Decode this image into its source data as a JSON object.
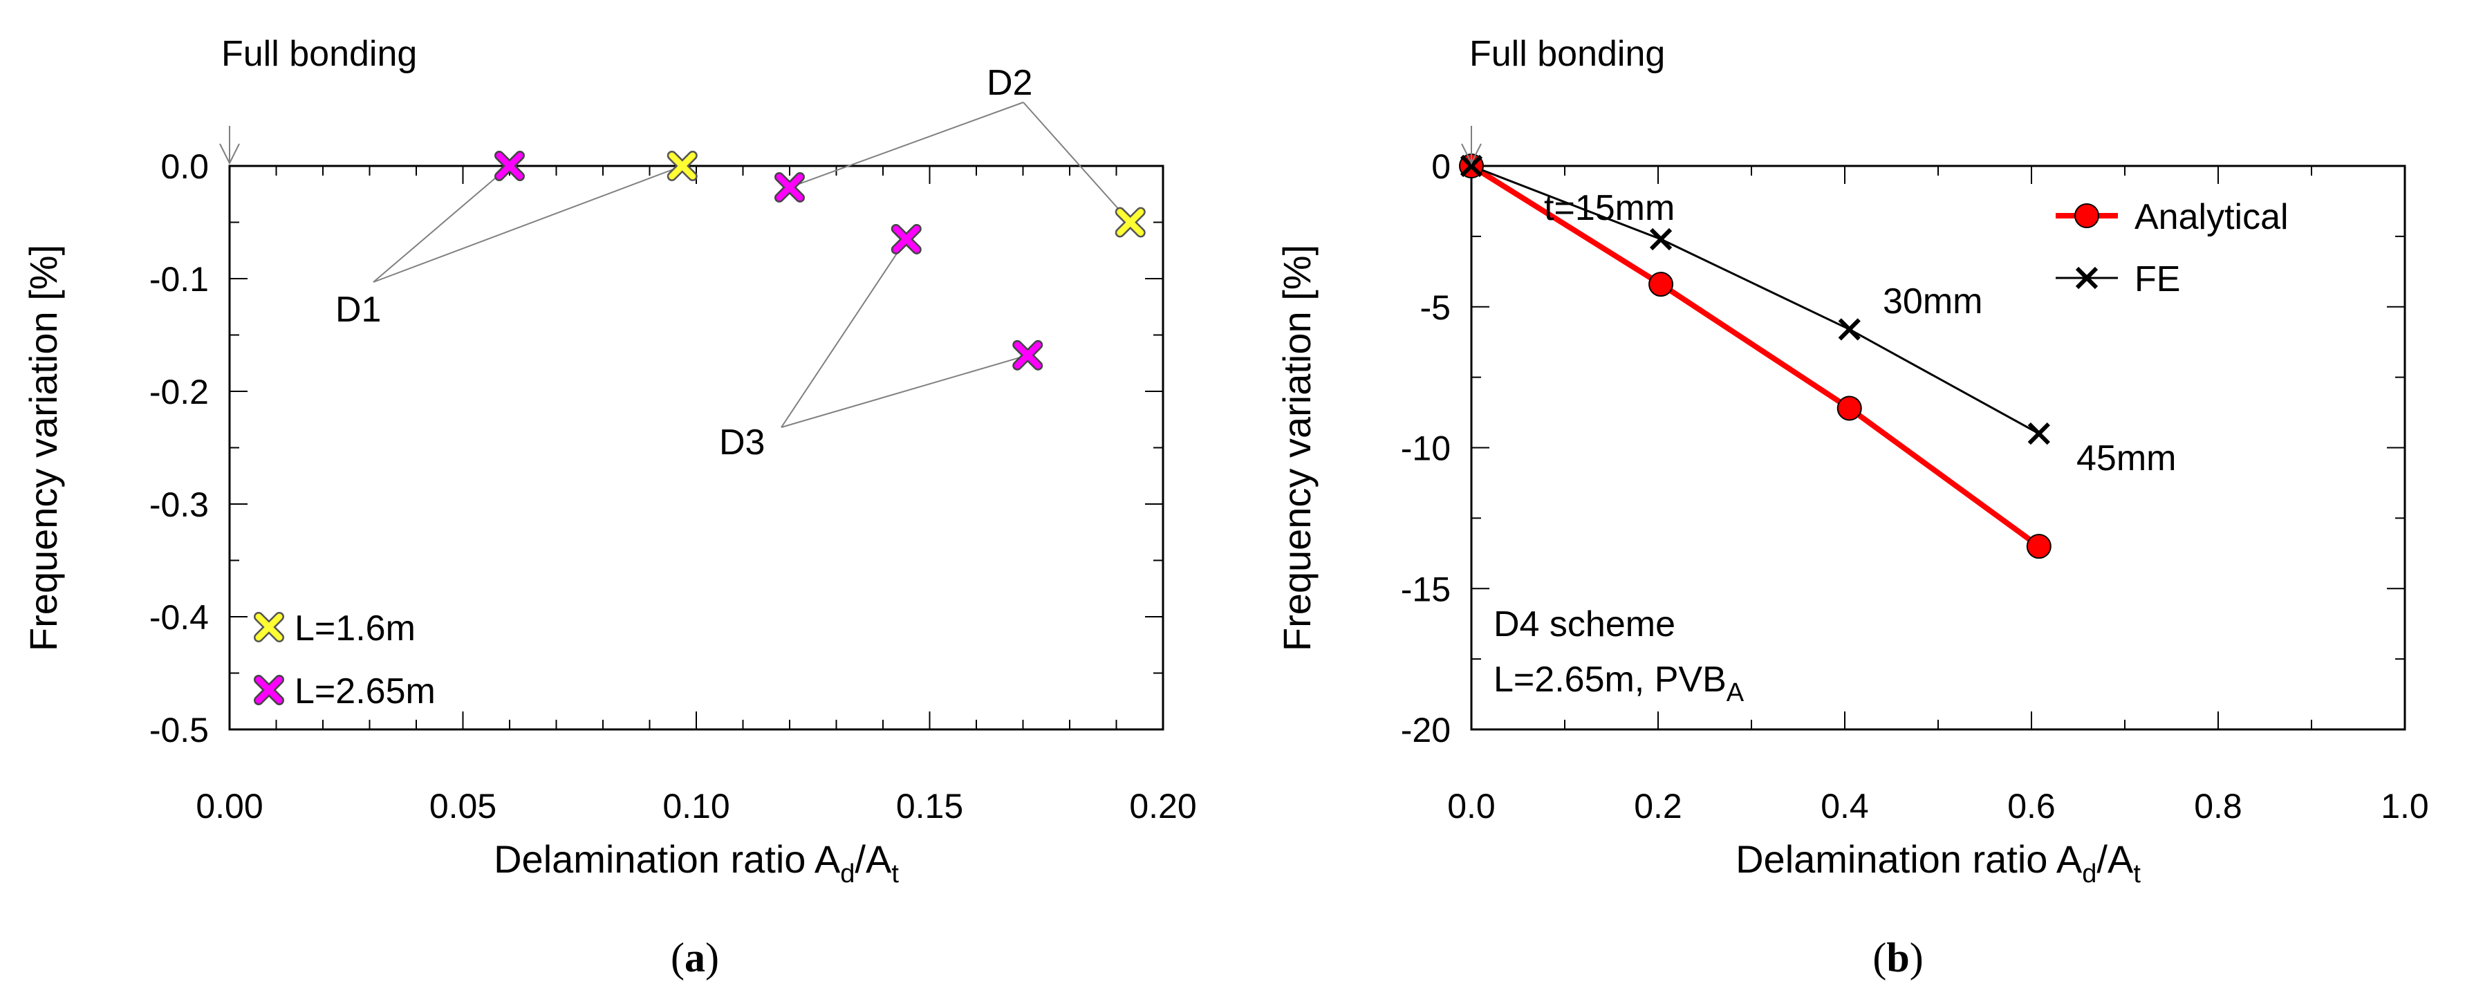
{
  "colors": {
    "yellow": "#ffff33",
    "magenta": "#ff00ff",
    "red": "#ff0000",
    "black": "#000000",
    "grey_line": "#808080"
  },
  "chart_data": [
    {
      "panel": "a",
      "type": "scatter",
      "panel_label": "a",
      "xlabel": "Delamination ratio A",
      "xlabel_sub1": "d",
      "xlabel_sep": "/A",
      "xlabel_sub2": "t",
      "ylabel": "Frequency variation [%]",
      "xlim": [
        0.0,
        0.2
      ],
      "ylim": [
        -0.5,
        0.0
      ],
      "xticks": [
        "0.00",
        "0.05",
        "0.10",
        "0.15",
        "0.20"
      ],
      "xtick_values": [
        0.0,
        0.05,
        0.1,
        0.15,
        0.2
      ],
      "yticks": [
        "0.0",
        "-0.1",
        "-0.2",
        "-0.3",
        "-0.4",
        "-0.5"
      ],
      "ytick_values": [
        0.0,
        -0.1,
        -0.2,
        -0.3,
        -0.4,
        -0.5
      ],
      "series": [
        {
          "name": "L=1.6m",
          "color": "#ffff33",
          "marker": "x",
          "points": [
            [
              0.097,
              0.0
            ],
            [
              0.193,
              -0.05
            ]
          ]
        },
        {
          "name": "L=2.65m",
          "color": "#ff00ff",
          "marker": "x",
          "points": [
            [
              0.06,
              0.0
            ],
            [
              0.12,
              -0.019
            ],
            [
              0.145,
              -0.065
            ],
            [
              0.171,
              -0.168
            ]
          ]
        }
      ],
      "annotations": [
        {
          "text": "Full bonding",
          "arrow_to": [
            0.0,
            0.0
          ]
        },
        {
          "text": "D1",
          "anchor": [
            0.03,
            -0.1
          ],
          "targets": [
            [
              0.06,
              0.0
            ],
            [
              0.097,
              0.0
            ]
          ]
        },
        {
          "text": "D2",
          "anchor": [
            0.17,
            0.073
          ],
          "targets": [
            [
              0.12,
              -0.019
            ],
            [
              0.193,
              -0.05
            ]
          ]
        },
        {
          "text": "D3",
          "anchor": [
            0.119,
            -0.23
          ],
          "targets": [
            [
              0.145,
              -0.065
            ],
            [
              0.171,
              -0.168
            ]
          ]
        }
      ]
    },
    {
      "panel": "b",
      "type": "line",
      "panel_label": "b",
      "xlabel": "Delamination ratio A",
      "xlabel_sub1": "d",
      "xlabel_sep": "/A",
      "xlabel_sub2": "t",
      "ylabel": "Frequency variation [%]",
      "xlim": [
        0.0,
        1.0
      ],
      "ylim": [
        -20,
        0
      ],
      "xticks": [
        "0.0",
        "0.2",
        "0.4",
        "0.6",
        "0.8",
        "1.0"
      ],
      "xtick_values": [
        0.0,
        0.2,
        0.4,
        0.6,
        0.8,
        1.0
      ],
      "yticks": [
        "0",
        "-5",
        "-10",
        "-15",
        "-20"
      ],
      "ytick_values": [
        0,
        -5,
        -10,
        -15,
        -20
      ],
      "series": [
        {
          "name": "Analytical",
          "color": "#ff0000",
          "marker": "circle",
          "x": [
            0.0,
            0.203,
            0.405,
            0.608
          ],
          "y": [
            0.0,
            -4.2,
            -8.6,
            -13.5
          ]
        },
        {
          "name": "FE",
          "color": "#000000",
          "marker": "x",
          "x": [
            0.0,
            0.203,
            0.405,
            0.608
          ],
          "y": [
            0.0,
            -2.6,
            -5.8,
            -9.5
          ]
        }
      ],
      "annotations": [
        {
          "text": "Full bonding",
          "arrow_to": [
            0.0,
            0.0
          ]
        },
        {
          "text": "t=15mm",
          "near": [
            0.203,
            -2.6
          ]
        },
        {
          "text": "30mm",
          "near": [
            0.405,
            -5.8
          ]
        },
        {
          "text": "45mm",
          "near": [
            0.608,
            -9.5
          ]
        }
      ],
      "info_line1": "D4 scheme",
      "info_line2_main": "L=2.65m, PVB",
      "info_line2_sub": "A"
    }
  ]
}
